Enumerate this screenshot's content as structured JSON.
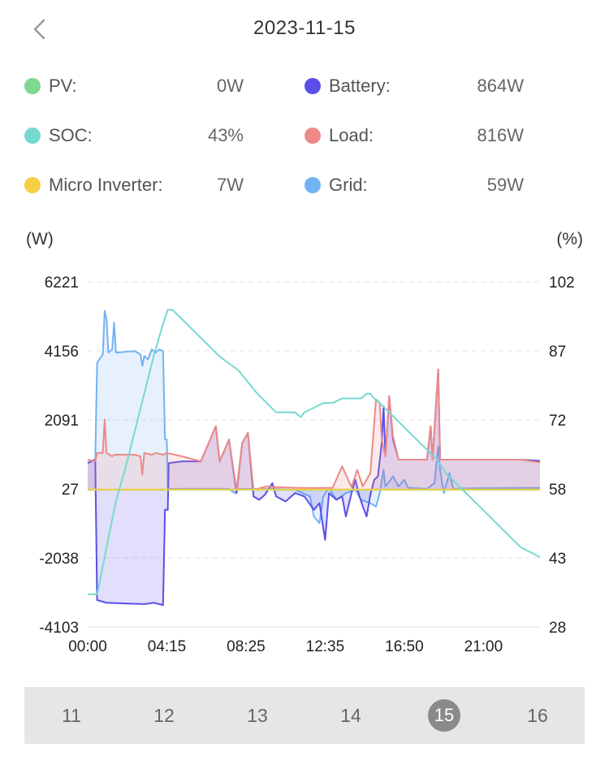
{
  "header": {
    "title": "2023-11-15"
  },
  "legend": [
    {
      "label": "PV:",
      "value": "0W",
      "color": "#7ed88f",
      "icon": "pv-dot"
    },
    {
      "label": "Battery:",
      "value": "864W",
      "color": "#5a4fe8",
      "icon": "battery-dot"
    },
    {
      "label": "SOC:",
      "value": "43%",
      "color": "#76d9cf",
      "icon": "soc-dot"
    },
    {
      "label": "Load:",
      "value": "816W",
      "color": "#ec8a88",
      "icon": "load-dot"
    },
    {
      "label": "Micro Inverter:",
      "value": "7W",
      "color": "#f5cf45",
      "icon": "micro-inverter-dot"
    },
    {
      "label": "Grid:",
      "value": "59W",
      "color": "#72b3f3",
      "icon": "grid-dot"
    }
  ],
  "chart_data": {
    "type": "line",
    "left_axis_unit": "(W)",
    "right_axis_unit": "(%)",
    "left_ticks": [
      "6221",
      "4156",
      "2091",
      "27",
      "-2038",
      "-4103"
    ],
    "right_ticks": [
      "102",
      "87",
      "72",
      "58",
      "43",
      "28"
    ],
    "x_ticks": [
      "00:00",
      "04:15",
      "08:25",
      "12:35",
      "16:50",
      "21:00"
    ],
    "ylim_left": [
      -4103,
      6221
    ],
    "ylim_right": [
      28,
      102
    ],
    "xlim_hours": [
      0,
      24
    ],
    "grid": "horizontal-dashed",
    "series": [
      {
        "name": "Grid",
        "color": "#72b3f3",
        "axis": "left",
        "fill": true,
        "points": [
          [
            0,
            800
          ],
          [
            0.4,
            900
          ],
          [
            0.5,
            3800
          ],
          [
            0.8,
            4050
          ],
          [
            0.9,
            5350
          ],
          [
            1.0,
            5100
          ],
          [
            1.1,
            4100
          ],
          [
            1.3,
            4200
          ],
          [
            1.4,
            5000
          ],
          [
            1.5,
            4100
          ],
          [
            2.5,
            4150
          ],
          [
            2.8,
            4050
          ],
          [
            2.9,
            3700
          ],
          [
            3.0,
            4000
          ],
          [
            3.2,
            3900
          ],
          [
            3.4,
            4200
          ],
          [
            3.6,
            4100
          ],
          [
            3.8,
            4200
          ],
          [
            4.0,
            4150
          ],
          [
            4.1,
            1500
          ],
          [
            4.2,
            1500
          ],
          [
            4.25,
            27
          ],
          [
            5,
            30
          ],
          [
            7,
            30
          ],
          [
            7.5,
            30
          ],
          [
            7.8,
            -100
          ],
          [
            8,
            27
          ],
          [
            9,
            27
          ],
          [
            10,
            30
          ],
          [
            11,
            0
          ],
          [
            11.8,
            -200
          ],
          [
            12,
            -800
          ],
          [
            12.3,
            -1000
          ],
          [
            12.5,
            -200
          ],
          [
            12.8,
            50
          ],
          [
            13.2,
            -300
          ],
          [
            13.7,
            -100
          ],
          [
            14.2,
            0
          ],
          [
            14.5,
            -300
          ],
          [
            15.0,
            -400
          ],
          [
            15.3,
            -500
          ],
          [
            15.5,
            -100
          ],
          [
            15.7,
            600
          ],
          [
            15.8,
            100
          ],
          [
            16.2,
            400
          ],
          [
            16.5,
            100
          ],
          [
            16.8,
            300
          ],
          [
            17,
            60
          ],
          [
            18,
            30
          ],
          [
            18.4,
            200
          ],
          [
            18.6,
            1300
          ],
          [
            18.7,
            600
          ],
          [
            18.9,
            -100
          ],
          [
            19.2,
            500
          ],
          [
            19.4,
            30
          ],
          [
            20,
            40
          ],
          [
            24,
            59
          ]
        ]
      },
      {
        "name": "Battery",
        "color": "#5a4fe8",
        "axis": "left",
        "fill": true,
        "points": [
          [
            0,
            800
          ],
          [
            0.4,
            900
          ],
          [
            0.5,
            -3300
          ],
          [
            1,
            -3380
          ],
          [
            2,
            -3400
          ],
          [
            3,
            -3420
          ],
          [
            3.5,
            -3380
          ],
          [
            4.0,
            -3450
          ],
          [
            4.1,
            -600
          ],
          [
            4.25,
            -600
          ],
          [
            4.3,
            800
          ],
          [
            5,
            850
          ],
          [
            6,
            850
          ],
          [
            6.8,
            1900
          ],
          [
            7.0,
            850
          ],
          [
            7.5,
            1500
          ],
          [
            7.9,
            -100
          ],
          [
            8.2,
            1400
          ],
          [
            8.5,
            1700
          ],
          [
            8.8,
            -200
          ],
          [
            9.1,
            -300
          ],
          [
            9.4,
            -150
          ],
          [
            9.8,
            200
          ],
          [
            10,
            -200
          ],
          [
            10.5,
            -350
          ],
          [
            11,
            -100
          ],
          [
            11.5,
            -200
          ],
          [
            12,
            -600
          ],
          [
            12.3,
            -400
          ],
          [
            12.6,
            -1500
          ],
          [
            12.8,
            -100
          ],
          [
            13.2,
            -300
          ],
          [
            13.5,
            -200
          ],
          [
            13.7,
            -800
          ],
          [
            14.0,
            -100
          ],
          [
            14.2,
            300
          ],
          [
            14.4,
            -150
          ],
          [
            14.6,
            -500
          ],
          [
            14.8,
            -800
          ],
          [
            15.0,
            -150
          ],
          [
            15.2,
            300
          ],
          [
            15.4,
            400
          ],
          [
            15.6,
            1400
          ],
          [
            15.7,
            2500
          ],
          [
            15.8,
            1000
          ],
          [
            16.0,
            2800
          ],
          [
            16.2,
            1500
          ],
          [
            16.5,
            900
          ],
          [
            17,
            900
          ],
          [
            18,
            900
          ],
          [
            18.2,
            1900
          ],
          [
            18.3,
            900
          ],
          [
            18.6,
            3600
          ],
          [
            18.7,
            900
          ],
          [
            19,
            900
          ],
          [
            20,
            900
          ],
          [
            21,
            900
          ],
          [
            22,
            900
          ],
          [
            23,
            900
          ],
          [
            24,
            864
          ]
        ]
      },
      {
        "name": "Load",
        "color": "#ec8a88",
        "axis": "left",
        "fill": true,
        "points": [
          [
            0,
            900
          ],
          [
            0.4,
            850
          ],
          [
            0.5,
            1100
          ],
          [
            0.8,
            1100
          ],
          [
            0.9,
            2100
          ],
          [
            1.0,
            1100
          ],
          [
            1.3,
            1000
          ],
          [
            1.4,
            1050
          ],
          [
            2.5,
            1050
          ],
          [
            2.8,
            1000
          ],
          [
            2.9,
            450
          ],
          [
            3.0,
            1100
          ],
          [
            3.4,
            1050
          ],
          [
            3.6,
            1100
          ],
          [
            4.0,
            1050
          ],
          [
            4.2,
            1100
          ],
          [
            5,
            1000
          ],
          [
            6,
            850
          ],
          [
            6.8,
            1900
          ],
          [
            7.0,
            850
          ],
          [
            7.5,
            1500
          ],
          [
            7.9,
            0
          ],
          [
            8.2,
            1400
          ],
          [
            8.5,
            1700
          ],
          [
            8.8,
            0
          ],
          [
            9.5,
            100
          ],
          [
            10,
            80
          ],
          [
            11,
            60
          ],
          [
            12,
            50
          ],
          [
            13,
            60
          ],
          [
            13.5,
            700
          ],
          [
            14,
            80
          ],
          [
            14.3,
            600
          ],
          [
            14.6,
            100
          ],
          [
            15.0,
            500
          ],
          [
            15.3,
            2700
          ],
          [
            15.5,
            2600
          ],
          [
            15.6,
            1500
          ],
          [
            15.8,
            1000
          ],
          [
            16.0,
            2800
          ],
          [
            16.2,
            1600
          ],
          [
            16.5,
            900
          ],
          [
            17,
            900
          ],
          [
            18,
            900
          ],
          [
            18.2,
            1900
          ],
          [
            18.3,
            900
          ],
          [
            18.6,
            3600
          ],
          [
            18.7,
            900
          ],
          [
            19,
            900
          ],
          [
            20,
            900
          ],
          [
            21,
            900
          ],
          [
            22,
            900
          ],
          [
            23,
            900
          ],
          [
            24,
            816
          ]
        ]
      },
      {
        "name": "PV",
        "color": "#7ed88f",
        "axis": "left",
        "fill": false,
        "points": [
          [
            0,
            0
          ],
          [
            24,
            0
          ]
        ]
      },
      {
        "name": "Micro Inverter",
        "color": "#f5cf45",
        "axis": "left",
        "fill": false,
        "points": [
          [
            0,
            7
          ],
          [
            24,
            7
          ]
        ]
      },
      {
        "name": "SOC",
        "color": "#76d9cf",
        "axis": "right",
        "fill": false,
        "points": [
          [
            0,
            35
          ],
          [
            0.5,
            35
          ],
          [
            1,
            45
          ],
          [
            1.5,
            55
          ],
          [
            2,
            62
          ],
          [
            2.5,
            70
          ],
          [
            3,
            78
          ],
          [
            3.5,
            86
          ],
          [
            4,
            93
          ],
          [
            4.25,
            96
          ],
          [
            4.5,
            96
          ],
          [
            5,
            94
          ],
          [
            6,
            90
          ],
          [
            7,
            86
          ],
          [
            8,
            83
          ],
          [
            9,
            78
          ],
          [
            10,
            74
          ],
          [
            11,
            74
          ],
          [
            11.3,
            73
          ],
          [
            11.5,
            74
          ],
          [
            12,
            75
          ],
          [
            12.5,
            76
          ],
          [
            13,
            76
          ],
          [
            13.5,
            77
          ],
          [
            14,
            77
          ],
          [
            14.5,
            77
          ],
          [
            14.8,
            78
          ],
          [
            15.0,
            78
          ],
          [
            15.2,
            77
          ],
          [
            15.5,
            76
          ],
          [
            16,
            74
          ],
          [
            16.5,
            72
          ],
          [
            17,
            70
          ],
          [
            17.5,
            68
          ],
          [
            18,
            66
          ],
          [
            18.5,
            64
          ],
          [
            19,
            61
          ],
          [
            19.5,
            59
          ],
          [
            20,
            57
          ],
          [
            20.5,
            55
          ],
          [
            21,
            53
          ],
          [
            21.5,
            51
          ],
          [
            22,
            49
          ],
          [
            22.5,
            47
          ],
          [
            23,
            45
          ],
          [
            23.5,
            44
          ],
          [
            24,
            43
          ]
        ]
      }
    ]
  },
  "days": [
    {
      "label": "11",
      "active": false
    },
    {
      "label": "12",
      "active": false
    },
    {
      "label": "13",
      "active": false
    },
    {
      "label": "14",
      "active": false
    },
    {
      "label": "15",
      "active": true
    },
    {
      "label": "16",
      "active": false
    }
  ]
}
